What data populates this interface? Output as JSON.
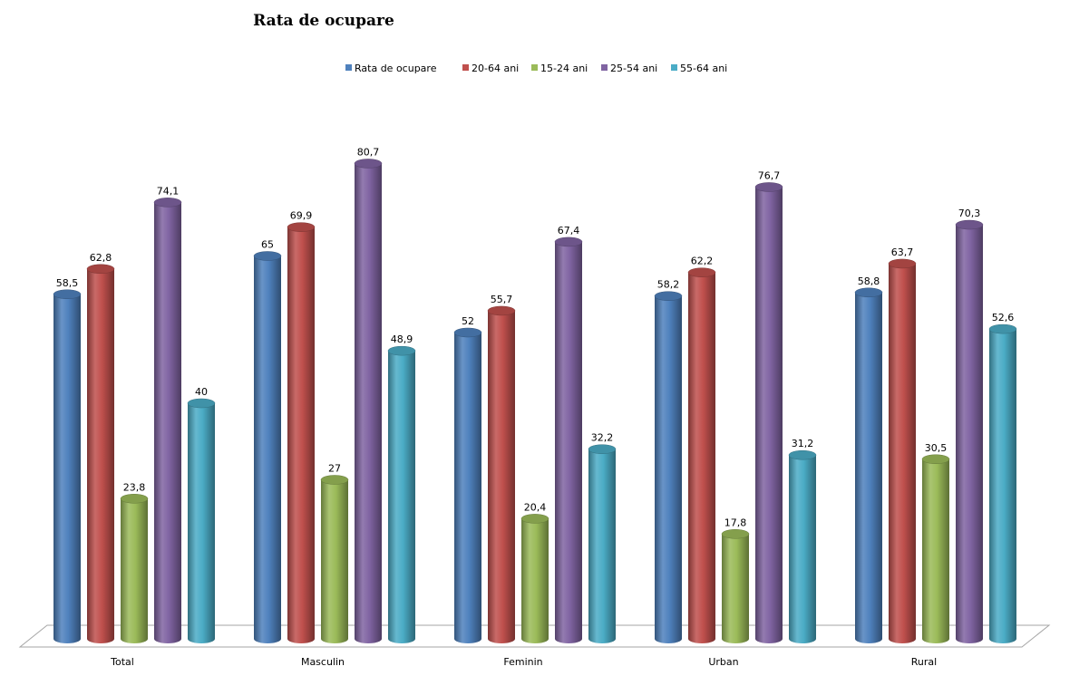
{
  "chart_data": {
    "type": "bar",
    "title": "Rata de ocupare",
    "xlabel": "",
    "ylabel": "",
    "ylim": [
      0,
      85
    ],
    "grid": false,
    "legend_position": "top",
    "categories": [
      "Total",
      "Masculin",
      "Feminin",
      "Urban",
      "Rural"
    ],
    "series": [
      {
        "name": "Rata de ocupare",
        "color": "#4f81bd",
        "values": [
          58.5,
          65,
          52,
          58.2,
          58.8
        ],
        "labels": [
          "58,5",
          "65",
          "52",
          "58,2",
          "58,8"
        ]
      },
      {
        "name": "20-64 ani",
        "color": "#c0504d",
        "values": [
          62.8,
          69.9,
          55.7,
          62.2,
          63.7
        ],
        "labels": [
          "62,8",
          "69,9",
          "55,7",
          "62,2",
          "63,7"
        ]
      },
      {
        "name": "15-24 ani",
        "color": "#9bbb59",
        "values": [
          23.8,
          27,
          20.4,
          17.8,
          30.5
        ],
        "labels": [
          "23,8",
          "27",
          "20,4",
          "17,8",
          "30,5"
        ]
      },
      {
        "name": "25-54 ani",
        "color": "#8064a2",
        "values": [
          74.1,
          80.7,
          67.4,
          76.7,
          70.3
        ],
        "labels": [
          "74,1",
          "80,7",
          "67,4",
          "76,7",
          "70,3"
        ]
      },
      {
        "name": "55-64 ani",
        "color": "#4bacc6",
        "values": [
          40,
          48.9,
          32.2,
          31.2,
          52.6
        ],
        "labels": [
          "40",
          "48,9",
          "32,2",
          "31,2",
          "52,6"
        ]
      }
    ]
  }
}
